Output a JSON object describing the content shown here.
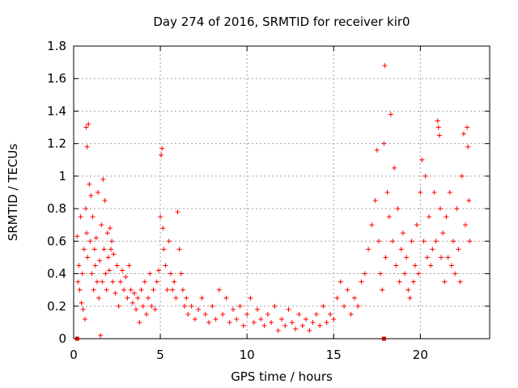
{
  "chart_data": {
    "type": "scatter",
    "title": "Day 274 of 2016, SRMTID for receiver kir0",
    "xlabel": "GPS time / hours",
    "ylabel": "SRMTID / TECUs",
    "xlim": [
      0,
      24
    ],
    "ylim": [
      0,
      1.8
    ],
    "x_ticks": [
      "0",
      "5",
      "10",
      "15",
      "20"
    ],
    "y_ticks": [
      "0",
      "0.2",
      "0.4",
      "0.6",
      "0.8",
      "1",
      "1.2",
      "1.4",
      "1.6",
      "1.8"
    ],
    "grid": true,
    "marker": "plus",
    "color": "#ff0000",
    "edge_markers_x": [
      0.2,
      17.9
    ],
    "series": [
      {
        "name": "SRMTID",
        "points": [
          [
            0.2,
            0.63
          ],
          [
            0.25,
            0.35
          ],
          [
            0.3,
            0.45
          ],
          [
            0.35,
            0.3
          ],
          [
            0.4,
            0.75
          ],
          [
            0.45,
            0.22
          ],
          [
            0.5,
            0.4
          ],
          [
            0.55,
            0.18
          ],
          [
            0.6,
            0.55
          ],
          [
            0.65,
            0.12
          ],
          [
            0.7,
            0.8
          ],
          [
            0.72,
            1.3
          ],
          [
            0.75,
            0.65
          ],
          [
            0.78,
            1.18
          ],
          [
            0.8,
            0.5
          ],
          [
            0.85,
            1.32
          ],
          [
            0.9,
            0.95
          ],
          [
            0.95,
            0.6
          ],
          [
            1.0,
            0.88
          ],
          [
            1.05,
            0.4
          ],
          [
            1.1,
            0.75
          ],
          [
            1.15,
            0.3
          ],
          [
            1.2,
            0.55
          ],
          [
            1.25,
            0.45
          ],
          [
            1.3,
            0.62
          ],
          [
            1.35,
            0.35
          ],
          [
            1.4,
            0.9
          ],
          [
            1.45,
            0.25
          ],
          [
            1.5,
            0.48
          ],
          [
            1.55,
            0.02
          ],
          [
            1.6,
            0.7
          ],
          [
            1.65,
            0.35
          ],
          [
            1.7,
            0.98
          ],
          [
            1.75,
            0.55
          ],
          [
            1.8,
            0.85
          ],
          [
            1.85,
            0.4
          ],
          [
            1.9,
            0.3
          ],
          [
            1.95,
            0.65
          ],
          [
            2.0,
            0.5
          ],
          [
            2.05,
            0.42
          ],
          [
            2.1,
            0.68
          ],
          [
            2.15,
            0.55
          ],
          [
            2.2,
            0.6
          ],
          [
            2.25,
            0.35
          ],
          [
            2.3,
            0.52
          ],
          [
            2.4,
            0.28
          ],
          [
            2.5,
            0.45
          ],
          [
            2.6,
            0.2
          ],
          [
            2.7,
            0.35
          ],
          [
            2.8,
            0.42
          ],
          [
            2.9,
            0.3
          ],
          [
            3.0,
            0.38
          ],
          [
            3.1,
            0.25
          ],
          [
            3.2,
            0.45
          ],
          [
            3.3,
            0.3
          ],
          [
            3.4,
            0.22
          ],
          [
            3.5,
            0.28
          ],
          [
            3.6,
            0.18
          ],
          [
            3.7,
            0.25
          ],
          [
            3.8,
            0.1
          ],
          [
            3.9,
            0.3
          ],
          [
            4.0,
            0.2
          ],
          [
            4.1,
            0.35
          ],
          [
            4.2,
            0.15
          ],
          [
            4.3,
            0.25
          ],
          [
            4.4,
            0.4
          ],
          [
            4.5,
            0.2
          ],
          [
            4.6,
            0.3
          ],
          [
            4.7,
            0.18
          ],
          [
            4.8,
            0.35
          ],
          [
            4.9,
            0.42
          ],
          [
            5.0,
            0.75
          ],
          [
            5.05,
            1.13
          ],
          [
            5.1,
            1.17
          ],
          [
            5.15,
            0.68
          ],
          [
            5.2,
            0.55
          ],
          [
            5.3,
            0.45
          ],
          [
            5.4,
            0.3
          ],
          [
            5.5,
            0.6
          ],
          [
            5.6,
            0.4
          ],
          [
            5.7,
            0.3
          ],
          [
            5.8,
            0.35
          ],
          [
            5.9,
            0.25
          ],
          [
            6.0,
            0.78
          ],
          [
            6.1,
            0.55
          ],
          [
            6.2,
            0.4
          ],
          [
            6.3,
            0.3
          ],
          [
            6.4,
            0.2
          ],
          [
            6.5,
            0.25
          ],
          [
            6.6,
            0.15
          ],
          [
            6.8,
            0.2
          ],
          [
            7.0,
            0.12
          ],
          [
            7.2,
            0.18
          ],
          [
            7.4,
            0.25
          ],
          [
            7.6,
            0.15
          ],
          [
            7.8,
            0.1
          ],
          [
            8.0,
            0.2
          ],
          [
            8.2,
            0.12
          ],
          [
            8.4,
            0.3
          ],
          [
            8.6,
            0.15
          ],
          [
            8.8,
            0.25
          ],
          [
            9.0,
            0.1
          ],
          [
            9.2,
            0.18
          ],
          [
            9.4,
            0.12
          ],
          [
            9.6,
            0.2
          ],
          [
            9.8,
            0.08
          ],
          [
            10.0,
            0.15
          ],
          [
            10.2,
            0.25
          ],
          [
            10.4,
            0.1
          ],
          [
            10.6,
            0.18
          ],
          [
            10.8,
            0.12
          ],
          [
            11.0,
            0.08
          ],
          [
            11.2,
            0.15
          ],
          [
            11.4,
            0.1
          ],
          [
            11.6,
            0.2
          ],
          [
            11.8,
            0.05
          ],
          [
            12.0,
            0.12
          ],
          [
            12.2,
            0.08
          ],
          [
            12.4,
            0.18
          ],
          [
            12.6,
            0.1
          ],
          [
            12.8,
            0.06
          ],
          [
            13.0,
            0.15
          ],
          [
            13.2,
            0.08
          ],
          [
            13.4,
            0.12
          ],
          [
            13.6,
            0.05
          ],
          [
            13.8,
            0.1
          ],
          [
            14.0,
            0.15
          ],
          [
            14.2,
            0.08
          ],
          [
            14.4,
            0.2
          ],
          [
            14.6,
            0.1
          ],
          [
            14.8,
            0.15
          ],
          [
            15.0,
            0.12
          ],
          [
            15.2,
            0.25
          ],
          [
            15.4,
            0.35
          ],
          [
            15.6,
            0.2
          ],
          [
            15.8,
            0.3
          ],
          [
            16.0,
            0.15
          ],
          [
            16.2,
            0.25
          ],
          [
            16.4,
            0.2
          ],
          [
            16.6,
            0.35
          ],
          [
            16.8,
            0.4
          ],
          [
            17.0,
            0.55
          ],
          [
            17.2,
            0.7
          ],
          [
            17.4,
            0.85
          ],
          [
            17.5,
            1.16
          ],
          [
            17.6,
            0.6
          ],
          [
            17.7,
            0.4
          ],
          [
            17.8,
            0.3
          ],
          [
            17.9,
            1.2
          ],
          [
            17.95,
            1.68
          ],
          [
            18.0,
            0.5
          ],
          [
            18.1,
            0.9
          ],
          [
            18.2,
            0.75
          ],
          [
            18.3,
            1.38
          ],
          [
            18.4,
            0.6
          ],
          [
            18.5,
            1.05
          ],
          [
            18.6,
            0.45
          ],
          [
            18.7,
            0.8
          ],
          [
            18.8,
            0.35
          ],
          [
            18.9,
            0.55
          ],
          [
            19.0,
            0.65
          ],
          [
            19.1,
            0.4
          ],
          [
            19.2,
            0.5
          ],
          [
            19.3,
            0.3
          ],
          [
            19.4,
            0.25
          ],
          [
            19.5,
            0.6
          ],
          [
            19.6,
            0.35
          ],
          [
            19.7,
            0.45
          ],
          [
            19.8,
            0.7
          ],
          [
            19.9,
            0.4
          ],
          [
            20.0,
            0.9
          ],
          [
            20.1,
            1.1
          ],
          [
            20.2,
            0.6
          ],
          [
            20.3,
            1.0
          ],
          [
            20.4,
            0.5
          ],
          [
            20.5,
            0.75
          ],
          [
            20.6,
            0.45
          ],
          [
            20.7,
            0.55
          ],
          [
            20.8,
            0.9
          ],
          [
            20.9,
            0.6
          ],
          [
            21.0,
            1.34
          ],
          [
            21.05,
            1.3
          ],
          [
            21.1,
            1.25
          ],
          [
            21.15,
            0.8
          ],
          [
            21.2,
            0.5
          ],
          [
            21.3,
            0.65
          ],
          [
            21.4,
            0.35
          ],
          [
            21.5,
            0.75
          ],
          [
            21.6,
            0.5
          ],
          [
            21.7,
            0.9
          ],
          [
            21.8,
            0.45
          ],
          [
            21.9,
            0.6
          ],
          [
            22.0,
            0.4
          ],
          [
            22.1,
            0.8
          ],
          [
            22.2,
            0.55
          ],
          [
            22.3,
            0.35
          ],
          [
            22.4,
            1.0
          ],
          [
            22.5,
            1.26
          ],
          [
            22.6,
            0.7
          ],
          [
            22.7,
            1.3
          ],
          [
            22.75,
            1.18
          ],
          [
            22.8,
            0.85
          ],
          [
            22.85,
            0.6
          ]
        ]
      }
    ]
  }
}
